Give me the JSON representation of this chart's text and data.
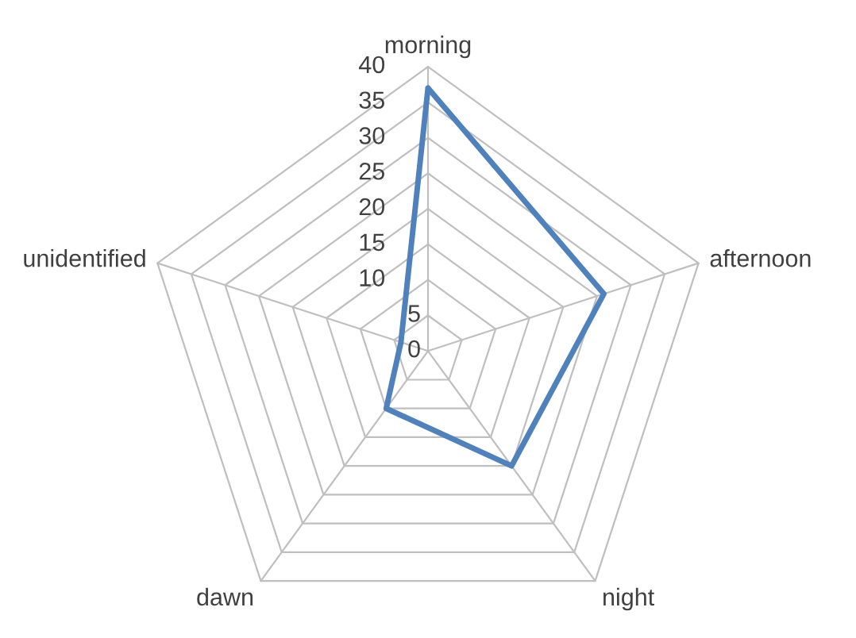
{
  "chart_data": {
    "type": "radar",
    "categories": [
      "morning",
      "afternoon",
      "night",
      "dawn",
      "unidentified"
    ],
    "series": [
      {
        "color": "#4f81bd",
        "values": [
          37,
          26,
          20,
          10,
          4
        ]
      }
    ],
    "ylim": [
      0,
      40
    ],
    "yticks": [
      0,
      5,
      10,
      15,
      20,
      25,
      30,
      35,
      40
    ],
    "grid": true
  }
}
